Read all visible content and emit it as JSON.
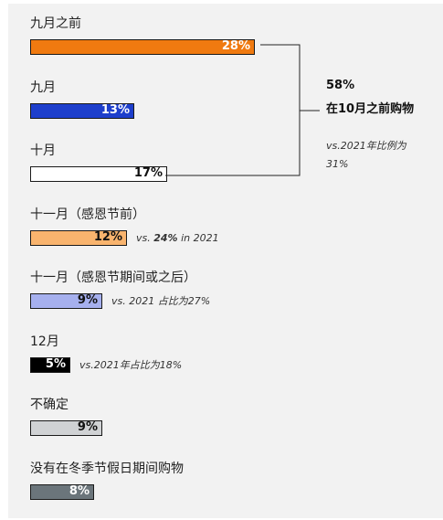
{
  "chart_data": {
    "type": "bar",
    "orientation": "horizontal",
    "xlim": [
      0,
      100
    ],
    "categories": [
      "九月之前",
      "九月",
      "十月",
      "十一月（感恩节前）",
      "十一月（感恩节期间或之后）",
      "12月",
      "不确定",
      "没有在冬季节假日期间购物"
    ],
    "values": [
      28,
      13,
      17,
      12,
      9,
      5,
      9,
      8
    ],
    "value_labels": [
      "28%",
      "13%",
      "17%",
      "12%",
      "9%",
      "5%",
      "9%",
      "8%"
    ],
    "colors": [
      "#f07a10",
      "#1e3fcc",
      "#ffffff",
      "#f9b46e",
      "#a6b0ee",
      "#000000",
      "#d0d2d4",
      "#6b757b"
    ],
    "label_colors": [
      "#ffffff",
      "#ffffff",
      "#111111",
      "#111111",
      "#111111",
      "#ffffff",
      "#111111",
      "#ffffff"
    ],
    "annotations": [
      {
        "index": 3,
        "parts": [
          {
            "text": "vs. ",
            "bold": false
          },
          {
            "text": "24%",
            "bold": true
          },
          {
            "text": " in 2021",
            "bold": false
          }
        ]
      },
      {
        "index": 4,
        "parts": [
          {
            "text": "vs. 2021 占比为27%",
            "bold": false
          }
        ]
      },
      {
        "index": 5,
        "parts": [
          {
            "text": "vs.2021年占比为18%",
            "bold": false
          }
        ]
      }
    ],
    "bracket_summary": {
      "covers": [
        0,
        1,
        2
      ],
      "value": "58%",
      "label": "在10月之前购物",
      "note_line1": "vs.2021年比例为",
      "note_line2": "31%"
    }
  }
}
